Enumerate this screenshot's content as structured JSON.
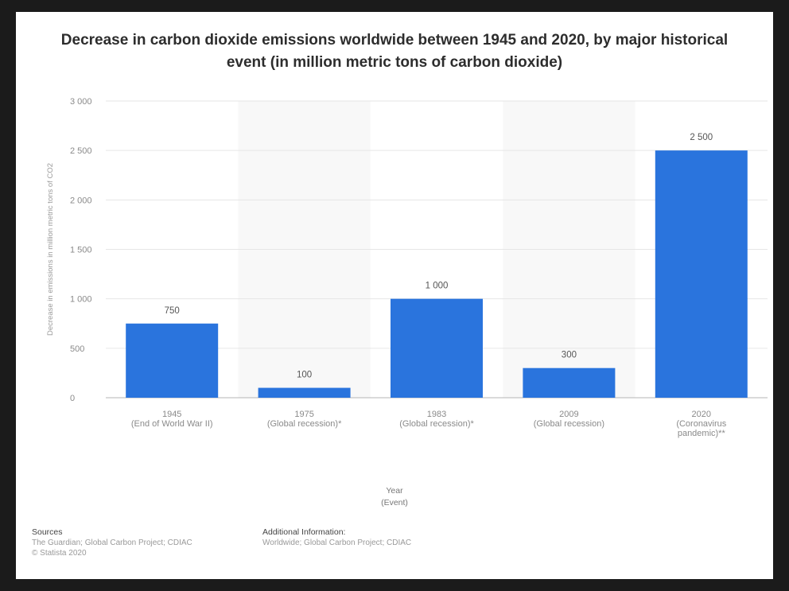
{
  "chart_data": {
    "type": "bar",
    "title": "Decrease in carbon dioxide emissions worldwide between 1945 and 2020, by major historical event (in million metric tons of carbon dioxide)",
    "ylabel": "Decrease in emissions in million metric tons of CO2",
    "xlabel_lines": [
      "Year",
      "(Event)"
    ],
    "categories": [
      [
        "1945",
        "(End of World War II)"
      ],
      [
        "1975",
        "(Global recession)*"
      ],
      [
        "1983",
        "(Global recession)*"
      ],
      [
        "2009",
        "(Global recession)"
      ],
      [
        "2020",
        "(Coronavirus",
        "pandemic)**"
      ]
    ],
    "values": [
      750,
      100,
      1000,
      300,
      2500
    ],
    "value_labels": [
      "750",
      "100",
      "1 000",
      "300",
      "2 500"
    ],
    "ylim": [
      0,
      3000
    ],
    "yticks": [
      0,
      500,
      1000,
      1500,
      2000,
      2500,
      3000
    ],
    "ytick_labels": [
      "0",
      "500",
      "1 000",
      "1 500",
      "2 000",
      "2 500",
      "3 000"
    ],
    "grid": true,
    "bar_color": "#2a74dd"
  },
  "footer": {
    "sources_head": "Sources",
    "sources_lines": [
      "The Guardian; Global Carbon Project; CDIAC",
      "© Statista 2020"
    ],
    "info_head": "Additional Information:",
    "info_lines": [
      "Worldwide; Global Carbon Project; CDIAC"
    ]
  }
}
